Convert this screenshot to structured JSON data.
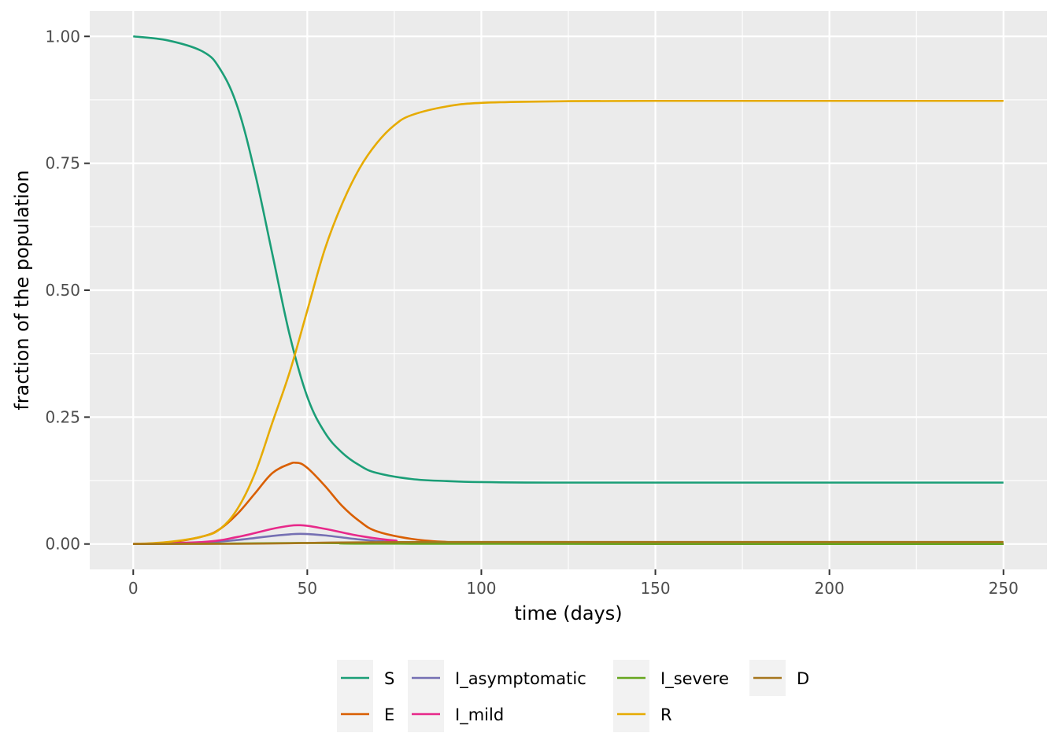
{
  "chart_data": {
    "type": "line",
    "title": "",
    "xlabel": "time (days)",
    "ylabel": "fraction of the population",
    "xlim": [
      -12.5,
      262.5
    ],
    "ylim": [
      -0.05,
      1.05
    ],
    "x_ticks": [
      0,
      50,
      100,
      150,
      200,
      250
    ],
    "x_tick_labels": [
      "0",
      "50",
      "100",
      "150",
      "200",
      "250"
    ],
    "y_ticks": [
      0,
      0.25,
      0.5,
      0.75,
      1.0
    ],
    "y_tick_labels": [
      "0.00",
      "0.25",
      "0.50",
      "0.75",
      "1.00"
    ],
    "grid": true,
    "legend_position": "bottom",
    "series": [
      {
        "name": "S",
        "color": "#1b9e77",
        "x": [
          0,
          10,
          20,
          25,
          30,
          35,
          40,
          45,
          50,
          55,
          60,
          65,
          70,
          80,
          90,
          100,
          120,
          150,
          200,
          250
        ],
        "y": [
          1.0,
          0.992,
          0.97,
          0.935,
          0.86,
          0.73,
          0.57,
          0.41,
          0.29,
          0.22,
          0.18,
          0.155,
          0.14,
          0.128,
          0.124,
          0.122,
          0.121,
          0.121,
          0.121,
          0.121
        ]
      },
      {
        "name": "E",
        "color": "#d95f02",
        "x": [
          0,
          10,
          20,
          25,
          30,
          35,
          40,
          45,
          47,
          50,
          55,
          60,
          65,
          70,
          80,
          90,
          100,
          150,
          250
        ],
        "y": [
          0.0,
          0.003,
          0.015,
          0.03,
          0.06,
          0.1,
          0.14,
          0.158,
          0.16,
          0.15,
          0.115,
          0.075,
          0.045,
          0.025,
          0.01,
          0.004,
          0.002,
          0.0,
          0.0
        ]
      },
      {
        "name": "I_asymptomatic",
        "color": "#7570b3",
        "x": [
          0,
          20,
          30,
          40,
          45,
          48,
          55,
          65,
          75,
          90,
          250
        ],
        "y": [
          0.0,
          0.003,
          0.008,
          0.016,
          0.019,
          0.02,
          0.017,
          0.009,
          0.004,
          0.001,
          0.0
        ]
      },
      {
        "name": "I_mild",
        "color": "#e7298a",
        "x": [
          0,
          20,
          30,
          40,
          45,
          48,
          55,
          65,
          75,
          90,
          250
        ],
        "y": [
          0.0,
          0.004,
          0.014,
          0.03,
          0.036,
          0.037,
          0.03,
          0.016,
          0.007,
          0.002,
          0.0
        ]
      },
      {
        "name": "I_severe",
        "color": "#66a61e",
        "x": [
          0,
          30,
          48,
          60,
          80,
          250
        ],
        "y": [
          0.0,
          0.001,
          0.002,
          0.0015,
          0.0005,
          0.0
        ]
      },
      {
        "name": "R",
        "color": "#e6ab02",
        "x": [
          0,
          10,
          20,
          25,
          30,
          35,
          40,
          45,
          50,
          55,
          60,
          65,
          70,
          75,
          80,
          90,
          100,
          120,
          150,
          200,
          250
        ],
        "y": [
          0.0,
          0.004,
          0.015,
          0.03,
          0.07,
          0.14,
          0.24,
          0.34,
          0.46,
          0.58,
          0.67,
          0.74,
          0.79,
          0.825,
          0.845,
          0.862,
          0.869,
          0.872,
          0.873,
          0.873,
          0.873
        ]
      },
      {
        "name": "D",
        "color": "#a6761d",
        "x": [
          0,
          30,
          40,
          50,
          60,
          80,
          100,
          250
        ],
        "y": [
          0.0,
          0.0005,
          0.001,
          0.002,
          0.003,
          0.0038,
          0.004,
          0.004
        ]
      }
    ]
  }
}
